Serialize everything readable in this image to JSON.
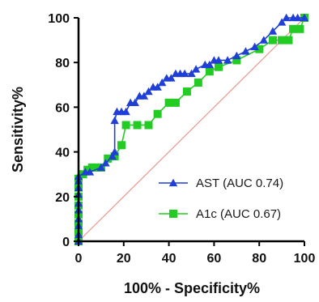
{
  "chart_data": {
    "type": "line",
    "title": "",
    "xlabel": "100% - Specificity%",
    "ylabel": "Sensitivity%",
    "xlim": [
      0,
      100
    ],
    "ylim": [
      0,
      100
    ],
    "xticks": [
      0,
      20,
      40,
      60,
      80,
      100
    ],
    "yticks": [
      0,
      20,
      40,
      60,
      80,
      100
    ],
    "grid": false,
    "legend_position": "bottom-right",
    "series": [
      {
        "name": "AST (AUC 0.74)",
        "color": "#1f3fd6",
        "marker": "triangle",
        "x": [
          0,
          0,
          0,
          0,
          0,
          0,
          0,
          0,
          0,
          0,
          3,
          5,
          10,
          12,
          15,
          16,
          16,
          17,
          19,
          21,
          23,
          25,
          27,
          29,
          31,
          33,
          35,
          37,
          39,
          41,
          43,
          45,
          47,
          50,
          52,
          56,
          58,
          60,
          62,
          66,
          70,
          74,
          78,
          82,
          86,
          90,
          92,
          95,
          97,
          100
        ],
        "y": [
          0,
          3,
          7,
          10,
          14,
          17,
          21,
          24,
          27,
          29,
          31,
          31,
          33,
          35,
          38,
          40,
          54,
          58,
          58,
          58,
          62,
          62,
          65,
          65,
          67,
          69,
          69,
          71,
          73,
          73,
          75,
          75,
          75,
          75,
          77,
          79,
          79,
          81,
          81,
          81,
          83,
          85,
          87,
          90,
          94,
          98,
          100,
          100,
          100,
          100
        ]
      },
      {
        "name": "A1c (AUC 0.67)",
        "color": "#22cc22",
        "marker": "square",
        "x": [
          0,
          0,
          0,
          0,
          0,
          0,
          0,
          0,
          2,
          4,
          6,
          8,
          10,
          13,
          16,
          19,
          21,
          26,
          31,
          35,
          40,
          43,
          48,
          53,
          58,
          62,
          70,
          80,
          86,
          90,
          93,
          95,
          98,
          100
        ],
        "y": [
          0,
          4,
          8,
          12,
          16,
          20,
          24,
          28,
          30,
          32,
          33,
          33,
          33,
          37,
          38,
          43,
          52,
          52,
          52,
          57,
          62,
          62,
          67,
          71,
          76,
          78,
          81,
          86,
          90,
          90,
          90,
          95,
          95,
          100
        ]
      }
    ],
    "reference_line": {
      "from": [
        0,
        0
      ],
      "to": [
        100,
        100
      ],
      "color": "#e8968c"
    }
  }
}
